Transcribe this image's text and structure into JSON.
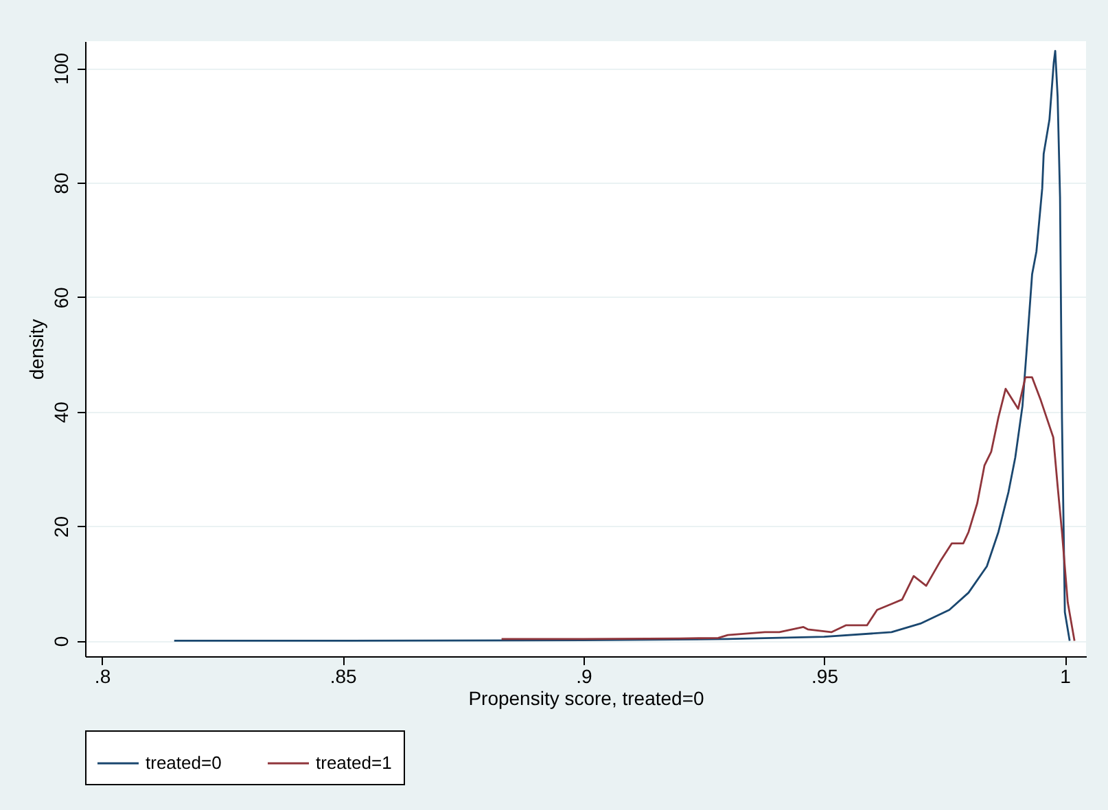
{
  "chart_data": {
    "type": "line",
    "xlabel": "Propensity score, treated=0",
    "ylabel": "density",
    "xlim": [
      0.7965,
      1.0044
    ],
    "ylim": [
      -2.7,
      104.7
    ],
    "xticks": [
      {
        "value": 0.8,
        "label": ".8"
      },
      {
        "value": 0.85,
        "label": ".85"
      },
      {
        "value": 0.9,
        "label": ".9"
      },
      {
        "value": 0.95,
        "label": ".95"
      },
      {
        "value": 1,
        "label": "1"
      }
    ],
    "yticks": [
      0,
      20,
      40,
      60,
      80,
      100
    ],
    "grid": "y",
    "legend": "bottom",
    "marker": "none",
    "line_style": "solid",
    "series": [
      {
        "name": "treated=0",
        "color": "#1a476f",
        "x": [
          0.815,
          0.85,
          0.9,
          0.93,
          0.95,
          0.964,
          0.97,
          0.976,
          0.98,
          0.9838,
          0.9862,
          0.9883,
          0.9897,
          0.9912,
          0.992,
          0.9932,
          0.9941,
          0.9953,
          0.9956,
          0.9968,
          0.9977,
          0.998,
          0.9985,
          0.999,
          0.9994,
          1.0,
          1.001
        ],
        "values": [
          0,
          0,
          0.1,
          0.3,
          0.7,
          1.5,
          3,
          5.4,
          8.4,
          13,
          19,
          26,
          32,
          41,
          50,
          64,
          68,
          79,
          85,
          91,
          101,
          103,
          95,
          77.5,
          39,
          5,
          0
        ]
      },
      {
        "name": "treated=1",
        "color": "#90353b",
        "x": [
          0.883,
          0.9,
          0.92,
          0.928,
          0.93,
          0.9377,
          0.9407,
          0.9457,
          0.9466,
          0.9515,
          0.9545,
          0.9589,
          0.961,
          0.9642,
          0.9662,
          0.9686,
          0.9712,
          0.9742,
          0.9765,
          0.9789,
          0.98,
          0.9818,
          0.9833,
          0.9847,
          0.9862,
          0.9877,
          0.9903,
          0.9918,
          0.9932,
          0.995,
          0.9962,
          0.9976,
          0.9985,
          0.9994,
          1.0006,
          1.002
        ],
        "values": [
          0.3,
          0.3,
          0.4,
          0.5,
          1,
          1.5,
          1.5,
          2.4,
          2,
          1.5,
          2.7,
          2.7,
          5.4,
          6.5,
          7.2,
          11.3,
          9.6,
          14,
          17,
          17,
          19,
          24,
          30.6,
          33,
          39,
          44,
          40.5,
          46,
          46,
          42,
          39,
          35.5,
          27,
          19,
          6.7,
          0
        ]
      }
    ]
  }
}
